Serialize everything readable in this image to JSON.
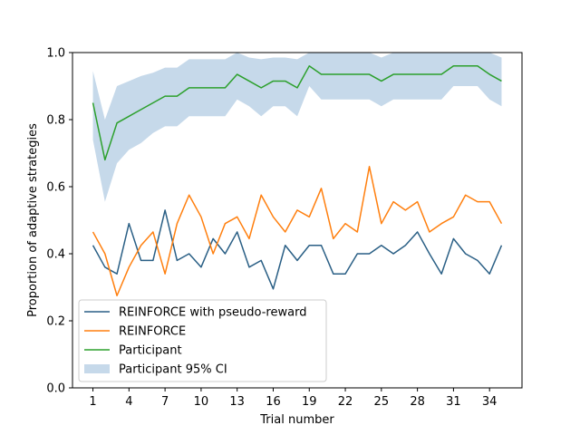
{
  "chart_data": {
    "type": "line",
    "xlabel": "Trial number",
    "ylabel": "Proportion of adaptive strategies",
    "xlim": [
      -0.7,
      36.7
    ],
    "ylim": [
      0.0,
      1.0
    ],
    "xticks": [
      1,
      4,
      7,
      10,
      13,
      16,
      19,
      22,
      25,
      28,
      31,
      34
    ],
    "yticks": [
      0.0,
      0.2,
      0.4,
      0.6,
      0.8,
      1.0
    ],
    "ytick_labels": [
      "0.0",
      "0.2",
      "0.4",
      "0.6",
      "0.8",
      "1.0"
    ],
    "grid": false,
    "legend_position": "lower-left",
    "x": [
      1,
      2,
      3,
      4,
      5,
      6,
      7,
      8,
      9,
      10,
      11,
      12,
      13,
      14,
      15,
      16,
      17,
      18,
      19,
      20,
      21,
      22,
      23,
      24,
      25,
      26,
      27,
      28,
      29,
      30,
      31,
      32,
      33,
      34,
      35
    ],
    "series": [
      {
        "name": "REINFORCE with pseudo-reward",
        "color": "#2a5f85",
        "values": [
          0.425,
          0.36,
          0.34,
          0.49,
          0.38,
          0.38,
          0.53,
          0.38,
          0.4,
          0.36,
          0.445,
          0.4,
          0.465,
          0.36,
          0.38,
          0.295,
          0.425,
          0.38,
          0.425,
          0.425,
          0.34,
          0.34,
          0.4,
          0.4,
          0.425,
          0.4,
          0.425,
          0.465,
          0.4,
          0.34,
          0.445,
          0.4,
          0.38,
          0.34,
          0.425
        ]
      },
      {
        "name": "REINFORCE",
        "color": "#ff7f0e",
        "values": [
          0.465,
          0.4,
          0.275,
          0.36,
          0.425,
          0.465,
          0.34,
          0.49,
          0.575,
          0.51,
          0.4,
          0.49,
          0.51,
          0.445,
          0.575,
          0.51,
          0.465,
          0.53,
          0.51,
          0.595,
          0.445,
          0.49,
          0.465,
          0.66,
          0.49,
          0.555,
          0.53,
          0.555,
          0.465,
          0.49,
          0.51,
          0.575,
          0.555,
          0.555,
          0.49
        ]
      },
      {
        "name": "Participant",
        "color": "#2ca02c",
        "values": [
          0.85,
          0.68,
          0.79,
          0.81,
          0.83,
          0.85,
          0.87,
          0.87,
          0.895,
          0.895,
          0.895,
          0.895,
          0.935,
          0.915,
          0.895,
          0.915,
          0.915,
          0.895,
          0.96,
          0.935,
          0.935,
          0.935,
          0.935,
          0.935,
          0.915,
          0.935,
          0.935,
          0.935,
          0.935,
          0.935,
          0.96,
          0.96,
          0.96,
          0.935,
          0.915
        ]
      }
    ],
    "band": {
      "name": "Participant 95% CI",
      "color": "#c6d9ea",
      "lower": [
        0.74,
        0.555,
        0.67,
        0.71,
        0.73,
        0.76,
        0.78,
        0.78,
        0.81,
        0.81,
        0.81,
        0.81,
        0.86,
        0.84,
        0.81,
        0.84,
        0.84,
        0.81,
        0.9,
        0.86,
        0.86,
        0.86,
        0.86,
        0.86,
        0.84,
        0.86,
        0.86,
        0.86,
        0.86,
        0.86,
        0.9,
        0.9,
        0.9,
        0.86,
        0.84
      ],
      "upper": [
        0.945,
        0.8,
        0.9,
        0.915,
        0.93,
        0.94,
        0.955,
        0.955,
        0.98,
        0.98,
        0.98,
        0.98,
        1.0,
        0.985,
        0.98,
        0.985,
        0.985,
        0.98,
        1.0,
        1.0,
        1.0,
        1.0,
        1.0,
        1.0,
        0.985,
        1.0,
        1.0,
        1.0,
        1.0,
        1.0,
        1.0,
        1.0,
        1.0,
        1.0,
        0.985
      ]
    }
  }
}
